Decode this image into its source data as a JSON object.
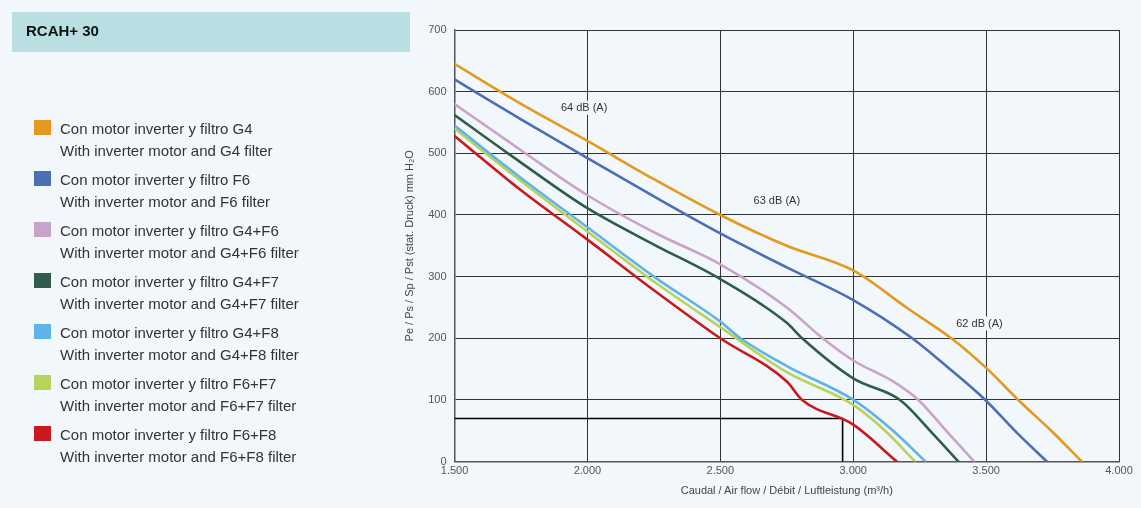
{
  "chart_data": {
    "type": "line",
    "title": "RCAH+ 30",
    "xlabel": "Caudal / Air flow / Débit / Luftleistung (m³/h)",
    "ylabel": "Pe / Ps / Sp / Pst (stat. Druck) mm H₂O",
    "xlim": [
      1500,
      4000
    ],
    "xticks": [
      {
        "value": 1500,
        "label": "1.500"
      },
      {
        "value": 2000,
        "label": "2.000"
      },
      {
        "value": 2500,
        "label": "2.500"
      },
      {
        "value": 3000,
        "label": "3.000"
      },
      {
        "value": 3500,
        "label": "3.500"
      },
      {
        "value": 4000,
        "label": "4.000"
      }
    ],
    "ylim": [
      0,
      700
    ],
    "yticks": [
      0,
      100,
      200,
      300,
      400,
      500,
      600,
      700
    ],
    "grid": true,
    "legend": "left",
    "marker": "none",
    "line_style": "solid",
    "annotations": [
      "64 dB (A)",
      "63 dB (A)",
      "62 dB (A)"
    ],
    "series": [
      {
        "name": "Con motor inverter y filtro G4\nWith inverter motor and G4 filter",
        "color": "#e39a1e",
        "x": [
          1500,
          1750,
          2000,
          2250,
          2500,
          2750,
          3000,
          3200,
          3369,
          3500,
          3621,
          3750,
          3860
        ],
        "values": [
          645,
          580,
          520,
          458,
          400,
          350,
          310,
          250,
          200,
          152,
          100,
          48,
          0
        ]
      },
      {
        "name": "Con motor inverter y filtro F6\nWith inverter motor and F6 filter",
        "color": "#4a6fb5",
        "x": [
          1500,
          1750,
          2000,
          2250,
          2500,
          2750,
          3000,
          3222,
          3350,
          3497,
          3620,
          3729
        ],
        "values": [
          620,
          555,
          492,
          430,
          370,
          315,
          262,
          200,
          155,
          100,
          45,
          0
        ]
      },
      {
        "name": "Con motor inverter y filtro G4+F6\nWith inverter motor and G4+F6 filter",
        "color": "#c9a3c9",
        "x": [
          1500,
          1750,
          2000,
          2250,
          2500,
          2750,
          2885,
          3000,
          3150,
          3245,
          3350,
          3455
        ],
        "values": [
          580,
          505,
          432,
          372,
          320,
          250,
          200,
          164,
          130,
          100,
          50,
          0
        ]
      },
      {
        "name": "Con motor inverter y filtro G4+F7\nWith inverter motor and G4+F7 filter",
        "color": "#2e5e4a",
        "x": [
          1500,
          1750,
          2000,
          2250,
          2500,
          2750,
          2808,
          3000,
          3176,
          3300,
          3396
        ],
        "values": [
          562,
          485,
          411,
          352,
          296,
          225,
          200,
          135,
          100,
          45,
          0
        ]
      },
      {
        "name": "Con motor inverter y filtro G4+F8\nWith inverter motor and G4+F8 filter",
        "color": "#5fb3e6",
        "x": [
          1500,
          1750,
          2000,
          2250,
          2500,
          2576,
          2750,
          3001,
          3150,
          3272
        ],
        "values": [
          545,
          460,
          380,
          300,
          227,
          200,
          155,
          100,
          50,
          0
        ]
      },
      {
        "name": "Con motor inverter y filtro F6+F7\nWith inverter motor and F6+F7 filter",
        "color": "#b8d35a",
        "x": [
          1500,
          1750,
          2000,
          2250,
          2500,
          2750,
          3000,
          3120,
          3233
        ],
        "values": [
          540,
          455,
          373,
          292,
          218,
          145,
          92,
          50,
          0
        ]
      },
      {
        "name": "Con motor inverter y filtro F6+F8\nWith inverter motor and F6+F8 filter",
        "color": "#c8191f",
        "x": [
          1500,
          1750,
          2000,
          2250,
          2500,
          2750,
          2808,
          3000,
          3164
        ],
        "values": [
          528,
          440,
          360,
          278,
          200,
          130,
          100,
          60,
          0
        ]
      },
      {
        "color": "#000000",
        "x": [
          1500,
          2960,
          2960
        ],
        "values": [
          70,
          70,
          0
        ]
      }
    ]
  }
}
